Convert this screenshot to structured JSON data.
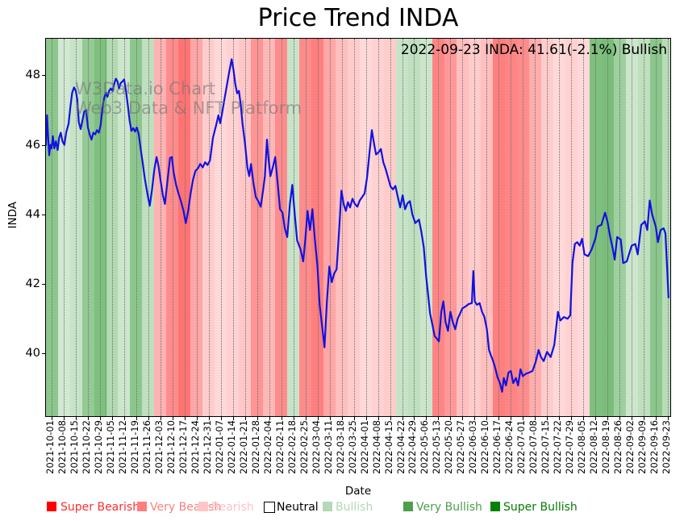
{
  "title": "Price Trend INDA",
  "annotation": "2022-09-23 INDA: 41.61(-2.1%) Bullish",
  "watermark": {
    "line1": "W3Data.io Chart",
    "line2": "Web3 Data & NFT Platform"
  },
  "axes": {
    "x_label": "Date",
    "y_label": "INDA"
  },
  "legend": {
    "items": [
      {
        "label": "Super Bearish",
        "color": "#ff0000",
        "text_color": "#ff2d2d",
        "sq_x": 58,
        "tx_x": 75,
        "outlined": false
      },
      {
        "label": "Very Bearish",
        "color": "#ff7d7d",
        "text_color": "#fa8080",
        "sq_x": 170,
        "tx_x": 186,
        "outlined": false
      },
      {
        "label": "Bearish",
        "color": "#ffc6c6",
        "text_color": "#fbc4c4",
        "sq_x": 246,
        "tx_x": 262,
        "outlined": false
      },
      {
        "label": "Neutral",
        "color": "#ffffff",
        "text_color": "#000000",
        "sq_x": 327,
        "tx_x": 343,
        "outlined": true
      },
      {
        "label": "Bullish",
        "color": "#b4d9b4",
        "text_color": "#b2d8b2",
        "sq_x": 400,
        "tx_x": 416,
        "outlined": false
      },
      {
        "label": "Very Bullish",
        "color": "#4d9e4d",
        "text_color": "#4d9e4d",
        "sq_x": 500,
        "tx_x": 516,
        "outlined": false
      },
      {
        "label": "Super Bullish",
        "color": "#048104",
        "text_color": "#047d04",
        "sq_x": 608,
        "tx_x": 624,
        "outlined": false
      }
    ]
  },
  "chart_data": {
    "type": "line",
    "title": "Price Trend INDA",
    "series_name": "INDA",
    "xlabel": "Date",
    "ylabel": "INDA",
    "line_color": "#1212e0",
    "grid": "vertical-dotted",
    "y_ticks": [
      40,
      42,
      44,
      46,
      48
    ],
    "ylim": [
      38.2,
      49.05
    ],
    "xlim_weeks": [
      -0.47,
      51.2
    ],
    "sentiment_base_colors": {
      "bearish": "#ff0000",
      "very_bearish": "#ff0000",
      "bullish": "#008000",
      "very_bullish": "#008000"
    },
    "x_tick_labels": [
      "2021-10-01",
      "2021-10-08",
      "2021-10-15",
      "2021-10-22",
      "2021-10-29",
      "2021-11-05",
      "2021-11-12",
      "2021-11-19",
      "2021-11-26",
      "2021-12-03",
      "2021-12-10",
      "2021-12-17",
      "2021-12-24",
      "2021-12-31",
      "2022-01-07",
      "2022-01-14",
      "2022-01-21",
      "2022-01-28",
      "2022-02-04",
      "2022-02-11",
      "2022-02-18",
      "2022-02-25",
      "2022-03-04",
      "2022-03-11",
      "2022-03-18",
      "2022-03-25",
      "2022-04-01",
      "2022-04-08",
      "2022-04-15",
      "2022-04-22",
      "2022-04-29",
      "2022-05-06",
      "2022-05-13",
      "2022-05-20",
      "2022-05-27",
      "2022-06-03",
      "2022-06-10",
      "2022-06-17",
      "2022-06-24",
      "2022-07-01",
      "2022-07-08",
      "2022-07-15",
      "2022-07-22",
      "2022-07-29",
      "2022-08-05",
      "2022-08-12",
      "2022-08-19",
      "2022-08-26",
      "2022-09-02",
      "2022-09-09",
      "2022-09-16",
      "2022-09-23"
    ],
    "bands": [
      {
        "date": "2021-10-01",
        "sentiment": "very_bullish",
        "shade": 0.45
      },
      {
        "date": "2021-10-08",
        "sentiment": "bullish",
        "shade": 0.18
      },
      {
        "date": "2021-10-15",
        "sentiment": "bullish",
        "shade": 0.22
      },
      {
        "date": "2021-10-22",
        "sentiment": "very_bullish",
        "shade": 0.42
      },
      {
        "date": "2021-10-29",
        "sentiment": "very_bullish",
        "shade": 0.5
      },
      {
        "date": "2021-11-05",
        "sentiment": "bullish",
        "shade": 0.3
      },
      {
        "date": "2021-11-12",
        "sentiment": "bullish",
        "shade": 0.2
      },
      {
        "date": "2021-11-19",
        "sentiment": "very_bullish",
        "shade": 0.45
      },
      {
        "date": "2021-11-26",
        "sentiment": "bullish",
        "shade": 0.25
      },
      {
        "date": "2021-12-03",
        "sentiment": "bearish",
        "shade": 0.3
      },
      {
        "date": "2021-12-10",
        "sentiment": "very_bearish",
        "shade": 0.45
      },
      {
        "date": "2021-12-17",
        "sentiment": "very_bearish",
        "shade": 0.55
      },
      {
        "date": "2021-12-24",
        "sentiment": "bearish",
        "shade": 0.35
      },
      {
        "date": "2021-12-31",
        "sentiment": "bearish",
        "shade": 0.2
      },
      {
        "date": "2022-01-07",
        "sentiment": "bearish",
        "shade": 0.15
      },
      {
        "date": "2022-01-14",
        "sentiment": "bearish",
        "shade": 0.18
      },
      {
        "date": "2022-01-21",
        "sentiment": "bearish",
        "shade": 0.22
      },
      {
        "date": "2022-01-28",
        "sentiment": "very_bearish",
        "shade": 0.42
      },
      {
        "date": "2022-02-04",
        "sentiment": "bearish",
        "shade": 0.28
      },
      {
        "date": "2022-02-11",
        "sentiment": "very_bearish",
        "shade": 0.45
      },
      {
        "date": "2022-02-18",
        "sentiment": "bullish",
        "shade": 0.22
      },
      {
        "date": "2022-02-25",
        "sentiment": "very_bearish",
        "shade": 0.45
      },
      {
        "date": "2022-03-04",
        "sentiment": "very_bearish",
        "shade": 0.5
      },
      {
        "date": "2022-03-11",
        "sentiment": "bearish",
        "shade": 0.35
      },
      {
        "date": "2022-03-18",
        "sentiment": "bearish",
        "shade": 0.25
      },
      {
        "date": "2022-03-25",
        "sentiment": "bearish",
        "shade": 0.2
      },
      {
        "date": "2022-04-01",
        "sentiment": "bearish",
        "shade": 0.15
      },
      {
        "date": "2022-04-08",
        "sentiment": "bearish",
        "shade": 0.18
      },
      {
        "date": "2022-04-15",
        "sentiment": "bearish",
        "shade": 0.2
      },
      {
        "date": "2022-04-22",
        "sentiment": "bullish",
        "shade": 0.22
      },
      {
        "date": "2022-04-29",
        "sentiment": "bullish",
        "shade": 0.25
      },
      {
        "date": "2022-05-06",
        "sentiment": "bullish",
        "shade": 0.2
      },
      {
        "date": "2022-05-13",
        "sentiment": "very_bearish",
        "shade": 0.48
      },
      {
        "date": "2022-05-20",
        "sentiment": "very_bearish",
        "shade": 0.4
      },
      {
        "date": "2022-05-27",
        "sentiment": "bearish",
        "shade": 0.25
      },
      {
        "date": "2022-06-03",
        "sentiment": "bearish",
        "shade": 0.2
      },
      {
        "date": "2022-06-10",
        "sentiment": "bearish",
        "shade": 0.25
      },
      {
        "date": "2022-06-17",
        "sentiment": "very_bearish",
        "shade": 0.5
      },
      {
        "date": "2022-06-24",
        "sentiment": "very_bearish",
        "shade": 0.48
      },
      {
        "date": "2022-07-01",
        "sentiment": "very_bearish",
        "shade": 0.45
      },
      {
        "date": "2022-07-08",
        "sentiment": "bearish",
        "shade": 0.32
      },
      {
        "date": "2022-07-15",
        "sentiment": "bearish",
        "shade": 0.2
      },
      {
        "date": "2022-07-22",
        "sentiment": "bearish",
        "shade": 0.15
      },
      {
        "date": "2022-07-29",
        "sentiment": "bearish",
        "shade": 0.18
      },
      {
        "date": "2022-08-05",
        "sentiment": "bearish",
        "shade": 0.15
      },
      {
        "date": "2022-08-12",
        "sentiment": "very_bullish",
        "shade": 0.5
      },
      {
        "date": "2022-08-19",
        "sentiment": "very_bullish",
        "shade": 0.52
      },
      {
        "date": "2022-08-26",
        "sentiment": "very_bullish",
        "shade": 0.38
      },
      {
        "date": "2022-09-02",
        "sentiment": "bullish",
        "shade": 0.2
      },
      {
        "date": "2022-09-09",
        "sentiment": "bullish",
        "shade": 0.25
      },
      {
        "date": "2022-09-16",
        "sentiment": "very_bullish",
        "shade": 0.45
      },
      {
        "date": "2022-09-23",
        "sentiment": "bullish",
        "shade": 0.28
      }
    ],
    "series": {
      "x_weeks": [
        -0.47,
        -0.38,
        -0.3,
        -0.2,
        -0.1,
        0,
        0.1,
        0.22,
        0.35,
        0.5,
        0.62,
        0.75,
        0.9,
        1.05,
        1.2,
        1.4,
        1.55,
        1.7,
        1.85,
        2,
        2.12,
        2.25,
        2.4,
        2.55,
        2.7,
        2.85,
        3,
        3.15,
        3.3,
        3.45,
        3.6,
        3.75,
        3.9,
        4.05,
        4.2,
        4.35,
        4.5,
        4.62,
        4.75,
        4.9,
        5.05,
        5.2,
        5.32,
        5.45,
        5.58,
        5.72,
        5.85,
        6,
        6.15,
        6.3,
        6.45,
        6.6,
        6.75,
        6.9,
        7.05,
        7.2,
        7.38,
        7.55,
        7.7,
        7.85,
        8,
        8.12,
        8.3,
        8.5,
        8.68,
        8.85,
        9,
        9.2,
        9.38,
        9.6,
        9.8,
        9.95,
        10.1,
        10.3,
        10.5,
        10.7,
        10.9,
        11.1,
        11.3,
        11.5,
        11.7,
        11.9,
        12.1,
        12.3,
        12.5,
        12.7,
        12.9,
        13.1,
        13.35,
        13.6,
        13.8,
        13.95,
        14.1,
        14.3,
        14.5,
        14.7,
        14.9,
        15.05,
        15.2,
        15.35,
        15.5,
        15.65,
        15.8,
        16,
        16.2,
        16.35,
        16.5,
        16.7,
        16.9,
        17.1,
        17.3,
        17.5,
        17.65,
        17.82,
        17.95,
        18.1,
        18.3,
        18.5,
        18.7,
        18.9,
        19.1,
        19.3,
        19.5,
        19.72,
        19.92,
        20.12,
        20.32,
        20.6,
        20.82,
        21,
        21.18,
        21.38,
        21.58,
        21.78,
        22,
        22.18,
        22.38,
        22.58,
        22.78,
        22.98,
        23.18,
        23.38,
        23.58,
        23.78,
        23.98,
        24.18,
        24.35,
        24.52,
        24.7,
        24.9,
        25.1,
        25.3,
        25.5,
        25.7,
        25.9,
        26.1,
        26.3,
        26.5,
        26.7,
        26.85,
        27.05,
        27.25,
        27.45,
        27.65,
        27.85,
        28.05,
        28.25,
        28.45,
        28.65,
        28.85,
        29.05,
        29.25,
        29.45,
        29.65,
        29.85,
        30.1,
        30.4,
        30.6,
        30.8,
        31,
        31.15,
        31.32,
        31.5,
        31.7,
        31.9,
        32.05,
        32.25,
        32.42,
        32.6,
        32.8,
        33,
        33.2,
        33.4,
        33.6,
        33.8,
        34,
        34.25,
        34.5,
        34.78,
        34.9,
        35.02,
        35.2,
        35.42,
        35.62,
        35.82,
        36.02,
        36.2,
        36.35,
        36.52,
        36.7,
        36.9,
        37.1,
        37.28,
        37.42,
        37.6,
        37.8,
        38,
        38.2,
        38.42,
        38.6,
        38.8,
        39,
        39.25,
        39.5,
        39.8,
        40.05,
        40.3,
        40.5,
        40.72,
        41,
        41.3,
        41.6,
        41.9,
        42.1,
        42.4,
        42.7,
        42.92,
        43.1,
        43.3,
        43.5,
        43.7,
        43.9,
        44.1,
        44.4,
        44.7,
        45,
        45.2,
        45.5,
        45.8,
        46,
        46.2,
        46.45,
        46.6,
        46.8,
        47.1,
        47.3,
        47.6,
        48,
        48.3,
        48.5,
        48.8,
        49.1,
        49.3,
        49.5,
        49.7,
        50,
        50.18,
        50.4,
        50.65,
        50.8,
        50.92,
        51.05
      ],
      "values": [
        46,
        46.85,
        46.3,
        45.7,
        46,
        45.9,
        46.25,
        45.9,
        46.1,
        45.85,
        46.2,
        46.35,
        46.1,
        46,
        46.35,
        46.6,
        47.1,
        47.5,
        47.65,
        47.55,
        47.3,
        46.65,
        46.45,
        46.7,
        46.95,
        47,
        46.5,
        46.3,
        46.15,
        46.35,
        46.3,
        46.42,
        46.35,
        46.55,
        47.05,
        47.35,
        47.5,
        47.38,
        47.55,
        47.62,
        47.55,
        47.78,
        47.9,
        47.82,
        47.62,
        47.78,
        47.82,
        47.88,
        47.55,
        47.15,
        46.7,
        46.4,
        46.48,
        46.38,
        46.5,
        46.32,
        45.85,
        45.45,
        45.05,
        44.75,
        44.45,
        44.25,
        44.7,
        45.3,
        45.65,
        45.38,
        45,
        44.55,
        44.3,
        45,
        45.62,
        45.65,
        45.2,
        44.85,
        44.6,
        44.38,
        44.12,
        43.75,
        44.1,
        44.6,
        45,
        45.25,
        45.32,
        45.45,
        45.35,
        45.5,
        45.42,
        45.55,
        46.2,
        46.55,
        46.85,
        46.62,
        46.9,
        47.3,
        47.7,
        48.1,
        48.46,
        48.15,
        47.75,
        47.48,
        47.55,
        47.15,
        46.6,
        46.05,
        45.35,
        45.1,
        45.45,
        44.9,
        44.5,
        44.38,
        44.22,
        44.7,
        45.1,
        46.15,
        45.6,
        45.1,
        45.35,
        45.65,
        44.9,
        44.15,
        44.05,
        43.6,
        43.35,
        44.3,
        44.85,
        44,
        43.25,
        43,
        42.65,
        43.3,
        44.1,
        43.55,
        44.15,
        43.3,
        42.5,
        41.4,
        40.8,
        40.18,
        41.5,
        42.5,
        42.05,
        42.3,
        42.42,
        43.5,
        44.68,
        44.28,
        44.1,
        44.35,
        44.2,
        44.45,
        44.3,
        44.22,
        44.4,
        44.5,
        44.6,
        45.05,
        45.75,
        46.42,
        46,
        45.72,
        45.78,
        45.88,
        45.5,
        45.3,
        45.05,
        44.8,
        44.72,
        44.82,
        44.5,
        44.2,
        44.55,
        44.15,
        44.32,
        44.38,
        44,
        43.75,
        43.85,
        43.5,
        43.05,
        42.2,
        41.7,
        41.15,
        40.85,
        40.5,
        40.42,
        40.35,
        41.2,
        41.5,
        40.9,
        40.65,
        41.2,
        40.9,
        40.7,
        41,
        41.15,
        41.3,
        41.35,
        41.42,
        41.45,
        42.37,
        41.5,
        41.4,
        41.45,
        41.2,
        41.05,
        40.7,
        40.1,
        39.95,
        39.8,
        39.6,
        39.32,
        39.15,
        38.9,
        39.3,
        39.08,
        39.45,
        39.5,
        39.15,
        39.3,
        39.08,
        39.55,
        39.35,
        39.42,
        39.45,
        39.5,
        39.75,
        40.1,
        39.9,
        39.78,
        40.05,
        39.9,
        40.25,
        41.2,
        40.95,
        41.05,
        41,
        41.1,
        42.6,
        43.15,
        43.2,
        43.1,
        43.3,
        42.85,
        42.8,
        43,
        43.3,
        43.65,
        43.7,
        44.05,
        43.8,
        43.4,
        43,
        42.7,
        43.35,
        43.28,
        42.6,
        42.65,
        43.1,
        43.15,
        42.85,
        43.7,
        43.8,
        43.55,
        44.4,
        44,
        43.65,
        43.2,
        43.55,
        43.6,
        43.45,
        42.6,
        41.61
      ]
    }
  }
}
